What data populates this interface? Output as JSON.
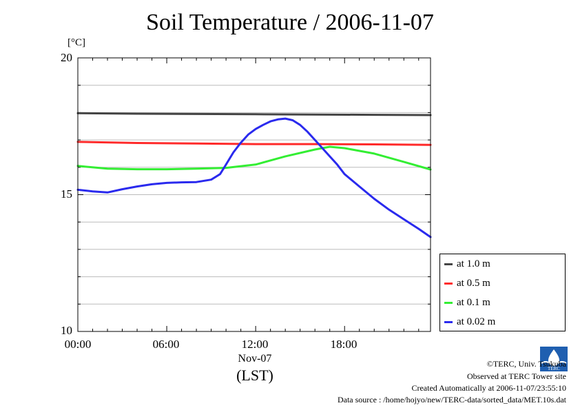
{
  "chart_data": {
    "type": "line",
    "title": "Soil Temperature / 2006-11-07",
    "unit_label": "[°C]",
    "ylim": [
      10,
      20
    ],
    "xlim": [
      0,
      23.8
    ],
    "yticks": [
      "20",
      "15",
      "10"
    ],
    "xticks": [
      "00:00",
      "06:00",
      "12:00",
      "18:00"
    ],
    "x_date_label": "Nov-07",
    "xlabel": "(LST)",
    "grid": true,
    "legend_position": "lower-right outside",
    "series": [
      {
        "name": "at 1.0 m",
        "color": "#444444",
        "x": [
          0,
          4,
          8,
          12,
          16,
          20,
          23.8
        ],
        "y": [
          17.98,
          17.96,
          17.95,
          17.94,
          17.93,
          17.92,
          17.91
        ]
      },
      {
        "name": "at 0.5 m",
        "color": "#ff2a2a",
        "x": [
          0,
          4,
          8,
          12,
          16,
          20,
          23.8
        ],
        "y": [
          16.93,
          16.89,
          16.87,
          16.85,
          16.85,
          16.84,
          16.82
        ]
      },
      {
        "name": "at 0.1 m",
        "color": "#33ee33",
        "x": [
          0,
          2,
          4,
          6,
          8,
          10,
          12,
          14,
          16,
          17,
          18,
          20,
          22,
          23.8
        ],
        "y": [
          16.05,
          15.95,
          15.93,
          15.93,
          15.95,
          15.98,
          16.1,
          16.4,
          16.65,
          16.75,
          16.7,
          16.5,
          16.2,
          15.92
        ]
      },
      {
        "name": "at 0.02 m",
        "color": "#2a2aee",
        "x": [
          0,
          1,
          2,
          3,
          4,
          5,
          6,
          7,
          8,
          9,
          9.6,
          10,
          10.5,
          11,
          11.5,
          12,
          12.5,
          13,
          13.5,
          14,
          14.5,
          15,
          15.5,
          16,
          16.5,
          17,
          17.5,
          18,
          19,
          20,
          21,
          22,
          23,
          23.8
        ],
        "y": [
          15.18,
          15.12,
          15.08,
          15.2,
          15.3,
          15.38,
          15.43,
          15.45,
          15.46,
          15.55,
          15.75,
          16.1,
          16.55,
          16.9,
          17.2,
          17.4,
          17.55,
          17.68,
          17.75,
          17.78,
          17.72,
          17.55,
          17.3,
          17.0,
          16.7,
          16.4,
          16.1,
          15.75,
          15.3,
          14.85,
          14.45,
          14.1,
          13.75,
          13.45
        ]
      }
    ]
  },
  "footer": {
    "copyright": "©TERC, Univ. Tsukuba",
    "site": "Observed at TERC Tower site",
    "created": "Created Automatically at 2006-11-07/23:55:10",
    "source": "Data source : /home/hojyo/new/TERC-data/sorted_data/MET.10s.dat"
  },
  "logo_text": "TERC"
}
